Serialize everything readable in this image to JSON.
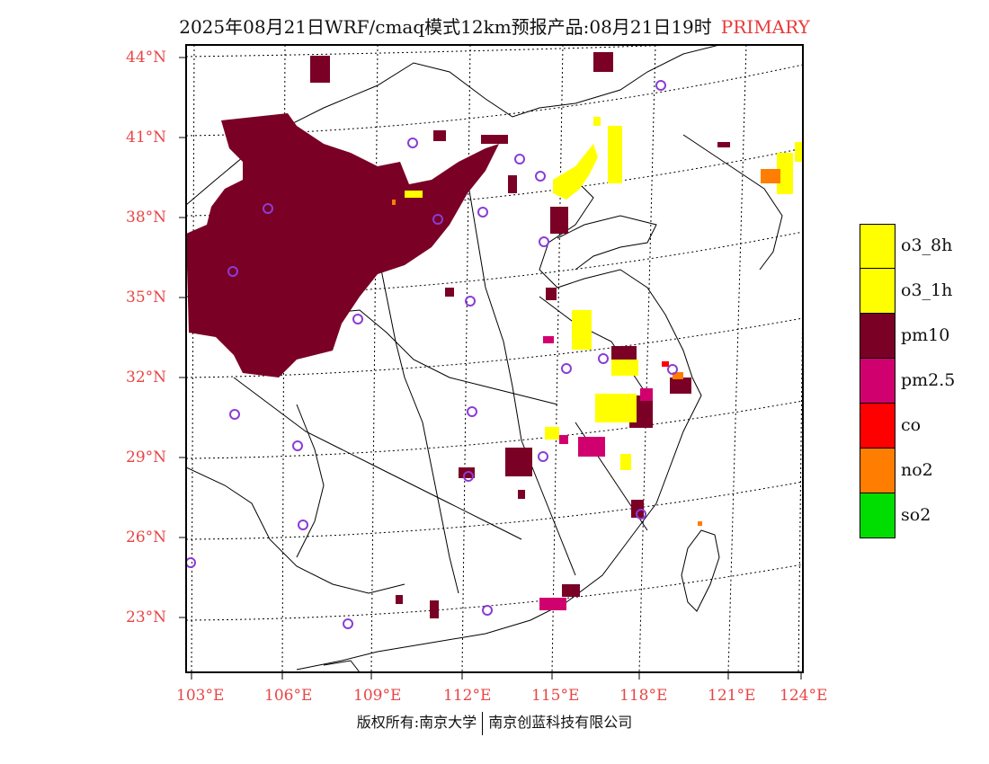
{
  "title": {
    "text": "2025年08月21日WRF/cmaq模式12km预报产品:08月21日19时",
    "tag": "PRIMARY",
    "tag_color": "#e83a3a"
  },
  "axes": {
    "latitude_labels": [
      "44°N",
      "41°N",
      "38°N",
      "35°N",
      "32°N",
      "29°N",
      "26°N",
      "23°N"
    ],
    "longitude_labels": [
      "103°E",
      "106°E",
      "109°E",
      "112°E",
      "115°E",
      "118°E",
      "121°E",
      "124°E"
    ],
    "label_color": "#e84545"
  },
  "legend": {
    "items": [
      {
        "label": "o3_8h",
        "color": "#ffff00"
      },
      {
        "label": "o3_1h",
        "color": "#ffff00"
      },
      {
        "label": "pm10",
        "color": "#7a0026"
      },
      {
        "label": "pm2.5",
        "color": "#d1006f"
      },
      {
        "label": "co",
        "color": "#ff0000"
      },
      {
        "label": "no2",
        "color": "#ff7d00"
      },
      {
        "label": "so2",
        "color": "#00dd00"
      }
    ]
  },
  "footer": {
    "left": "版权所有:南京大学",
    "right": "南京创蓝科技有限公司"
  }
}
